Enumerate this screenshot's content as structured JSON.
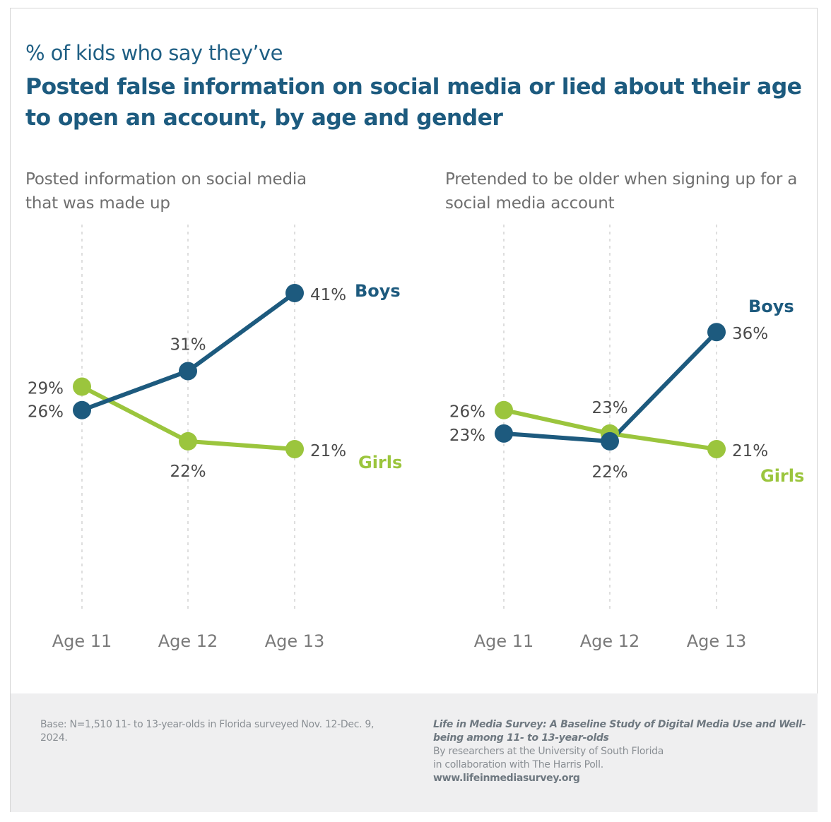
{
  "header": {
    "subtitle": "% of kids who say they’ve",
    "title": "Posted false information on social media or lied about their age to open an account, by age and gender"
  },
  "colors": {
    "boys": "#1d5a7e",
    "girls": "#9bc53d",
    "label_text": "#4a4a4a",
    "gridline": "#d3d3d3",
    "axis_text": "#7a7a7a"
  },
  "chart_data": [
    {
      "type": "line",
      "title": "Posted information on social media that was made up",
      "categories": [
        "Age 11",
        "Age 12",
        "Age 13"
      ],
      "xlabel": "",
      "ylabel": "",
      "ylim": [
        0,
        45
      ],
      "grid": "vertical dashed",
      "unit": "%",
      "series": [
        {
          "name": "Boys",
          "values": [
            26,
            31,
            41
          ],
          "labels": [
            "26%",
            "31%",
            "41%"
          ]
        },
        {
          "name": "Girls",
          "values": [
            29,
            22,
            21
          ],
          "labels": [
            "29%",
            "22%",
            "21%"
          ]
        }
      ],
      "legend": "inline-right"
    },
    {
      "type": "line",
      "title": "Pretended to be older when signing up for a social media account",
      "categories": [
        "Age 11",
        "Age 12",
        "Age 13"
      ],
      "xlabel": "",
      "ylabel": "",
      "ylim": [
        0,
        45
      ],
      "grid": "vertical dashed",
      "unit": "%",
      "series": [
        {
          "name": "Boys",
          "values": [
            23,
            22,
            36
          ],
          "labels": [
            "23%",
            "22%",
            "36%"
          ]
        },
        {
          "name": "Girls",
          "values": [
            26,
            23,
            21
          ],
          "labels": [
            "26%",
            "23%",
            "21%"
          ]
        }
      ],
      "legend": "inline-right"
    }
  ],
  "footer": {
    "base_note": "Base: N=1,510 11- to 13-year-olds in Florida surveyed Nov. 12-Dec. 9, 2024.",
    "source_title": "Life in Media Survey: A Baseline Study of Digital Media Use and Well-being among 11- to 13-year-olds",
    "source_line1": "By researchers at the University of South Florida",
    "source_line2": "in collaboration with The Harris Poll.",
    "url": "www.lifeinmediasurvey.org"
  }
}
